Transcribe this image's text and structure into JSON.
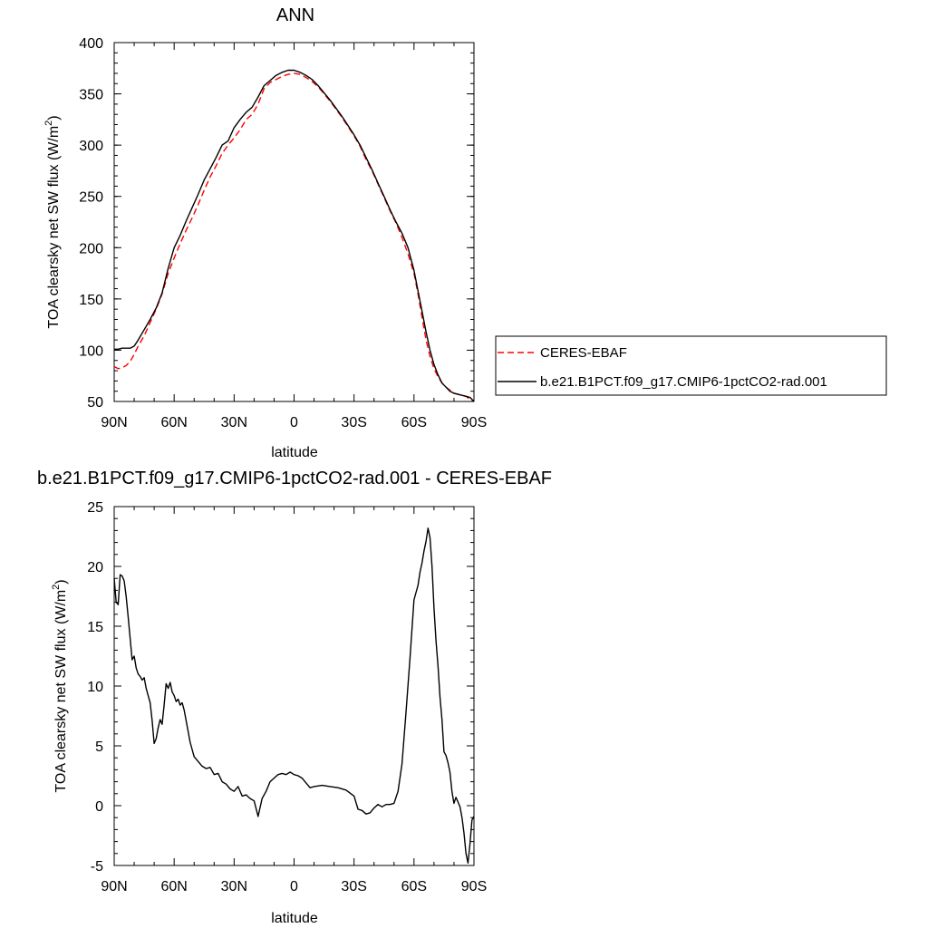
{
  "chart_data": [
    {
      "type": "line",
      "title": "ANN",
      "xlabel": "latitude",
      "ylabel": "TOA clearsky net SW flux (W/m",
      "ylabel_sup": "2",
      "ylabel_close": ")",
      "xlim": [
        90,
        -90
      ],
      "ylim": [
        50,
        400
      ],
      "x_ticks": [
        90,
        60,
        30,
        0,
        -30,
        -60,
        -90
      ],
      "x_tick_labels": [
        "90N",
        "60N",
        "30N",
        "0",
        "30S",
        "60S",
        "90S"
      ],
      "y_ticks": [
        50,
        100,
        150,
        200,
        250,
        300,
        350,
        400
      ],
      "y_tick_labels": [
        "50",
        "100",
        "150",
        "200",
        "250",
        "300",
        "350",
        "400"
      ],
      "legend_position": "right",
      "series": [
        {
          "name": "CERES-EBAF",
          "color": "#ff0000",
          "style": "dashed",
          "x": [
            90,
            88,
            86,
            84,
            82,
            80,
            78,
            75,
            72,
            69,
            66,
            63,
            60,
            57,
            54,
            51,
            48,
            45,
            42,
            39,
            36,
            33,
            30,
            27,
            24,
            21,
            18,
            15,
            12,
            9,
            6,
            3,
            0,
            -3,
            -6,
            -9,
            -12,
            -15,
            -18,
            -21,
            -24,
            -27,
            -30,
            -33,
            -36,
            -39,
            -42,
            -45,
            -48,
            -51,
            -54,
            -57,
            -60,
            -62,
            -64,
            -66,
            -68,
            -70,
            -72,
            -74,
            -76,
            -78,
            -80,
            -82,
            -84,
            -86,
            -88,
            -90
          ],
          "y": [
            84,
            82,
            83,
            85,
            89,
            96,
            104,
            114,
            127,
            140,
            155,
            175,
            190,
            204,
            217,
            229,
            242,
            256,
            269,
            280,
            292,
            300,
            307,
            315,
            325,
            330,
            340,
            355,
            361,
            364,
            367,
            369,
            370,
            369,
            366,
            362,
            357,
            350,
            343,
            335,
            327,
            318,
            309,
            299,
            286,
            275,
            262,
            249,
            236,
            224,
            210,
            194,
            175,
            155,
            132,
            110,
            94,
            82,
            74,
            68,
            64,
            61,
            58,
            57,
            56,
            55,
            52,
            50
          ]
        },
        {
          "name": "b.e21.B1PCT.f09_g17.CMIP6-1pctCO2-rad.001",
          "color": "#000000",
          "style": "solid",
          "x": [
            90,
            88,
            86,
            84,
            82,
            80,
            78,
            75,
            72,
            69,
            66,
            63,
            60,
            57,
            54,
            51,
            48,
            45,
            42,
            39,
            36,
            33,
            30,
            27,
            24,
            21,
            18,
            15,
            12,
            9,
            6,
            3,
            0,
            -3,
            -6,
            -9,
            -12,
            -15,
            -18,
            -21,
            -24,
            -27,
            -30,
            -33,
            -36,
            -39,
            -42,
            -45,
            -48,
            -51,
            -54,
            -57,
            -60,
            -62,
            -64,
            -66,
            -68,
            -70,
            -72,
            -74,
            -76,
            -78,
            -80,
            -82,
            -84,
            -86,
            -88,
            -90
          ],
          "y": [
            101,
            101,
            102,
            102,
            102,
            104,
            110,
            120,
            130,
            141,
            156,
            180,
            200,
            212,
            226,
            239,
            252,
            266,
            277,
            288,
            300,
            304,
            317,
            325,
            332,
            337,
            347,
            358,
            363,
            368,
            371,
            373,
            373,
            371,
            368,
            364,
            358,
            351,
            344,
            336,
            328,
            319,
            310,
            300,
            288,
            276,
            263,
            250,
            237,
            225,
            214,
            200,
            178,
            158,
            138,
            118,
            100,
            86,
            76,
            68,
            64,
            60,
            58,
            57,
            56,
            55,
            54,
            50
          ]
        }
      ]
    },
    {
      "type": "line",
      "title": "b.e21.B1PCT.f09_g17.CMIP6-1pctCO2-rad.001 - CERES-EBAF",
      "xlabel": "latitude",
      "ylabel": "TOA clearsky net SW flux (W/m",
      "ylabel_sup": "2",
      "ylabel_close": ")",
      "xlim": [
        90,
        -90
      ],
      "ylim": [
        -5,
        25
      ],
      "x_ticks": [
        90,
        60,
        30,
        0,
        -30,
        -60,
        -90
      ],
      "x_tick_labels": [
        "90N",
        "60N",
        "30N",
        "0",
        "30S",
        "60S",
        "90S"
      ],
      "y_ticks": [
        -5,
        0,
        5,
        10,
        15,
        20,
        25
      ],
      "y_tick_labels": [
        "-5",
        "0",
        "5",
        "10",
        "15",
        "20",
        "25"
      ],
      "series": [
        {
          "color": "#000000",
          "style": "solid",
          "x": [
            90,
            89,
            88,
            87,
            86,
            85,
            84,
            83,
            82,
            81,
            80,
            79,
            78,
            77,
            76,
            75,
            74,
            73,
            72,
            71,
            70,
            69,
            68,
            67,
            66,
            65,
            64,
            63,
            62,
            61,
            60,
            59,
            58,
            57,
            56,
            55,
            54,
            52,
            50,
            48,
            46,
            44,
            42,
            40,
            38,
            36,
            34,
            32,
            30,
            28,
            26,
            24,
            22,
            20,
            18,
            16,
            14,
            12,
            10,
            8,
            6,
            4,
            2,
            0,
            -2,
            -4,
            -6,
            -8,
            -10,
            -14,
            -18,
            -22,
            -26,
            -30,
            -32,
            -34,
            -36,
            -38,
            -40,
            -42,
            -44,
            -46,
            -48,
            -50,
            -52,
            -54,
            -56,
            -58,
            -60,
            -61,
            -62,
            -63,
            -64,
            -65,
            -66,
            -67,
            -68,
            -69,
            -70,
            -71,
            -72,
            -73,
            -74,
            -75,
            -76,
            -77,
            -78,
            -79,
            -80,
            -81,
            -82,
            -83,
            -84,
            -85,
            -86,
            -87,
            -88,
            -89,
            -90
          ],
          "y": [
            19,
            17,
            16.8,
            19.3,
            19.2,
            18.8,
            17.5,
            15.8,
            14,
            12.2,
            12.5,
            11.5,
            11,
            10.8,
            10.5,
            10.7,
            9.8,
            9.2,
            8.6,
            7.1,
            5.2,
            5.6,
            6.5,
            7.2,
            6.8,
            8.4,
            10.2,
            9.8,
            10.3,
            9.5,
            9.2,
            8.7,
            8.9,
            8.4,
            8.6,
            8,
            7.1,
            5.3,
            4.1,
            3.7,
            3.3,
            3.1,
            3.2,
            2.6,
            2.7,
            2,
            1.8,
            1.4,
            1.2,
            1.6,
            0.8,
            0.9,
            0.6,
            0.4,
            -0.9,
            0.6,
            1.2,
            2,
            2.3,
            2.6,
            2.7,
            2.6,
            2.8,
            2.6,
            2.5,
            2.3,
            1.9,
            1.5,
            1.6,
            1.7,
            1.6,
            1.5,
            1.3,
            0.8,
            -0.3,
            -0.4,
            -0.7,
            -0.6,
            -0.2,
            0.1,
            -0.1,
            0.1,
            0.1,
            0.2,
            1.2,
            3.5,
            7.8,
            12.3,
            17.2,
            17.8,
            18.4,
            19.5,
            20.3,
            21.3,
            22.1,
            23.2,
            22.4,
            20,
            16.5,
            13.8,
            11.7,
            9.1,
            7.2,
            4.5,
            4.2,
            3.6,
            2.8,
            1.2,
            0.2,
            0.7,
            0.3,
            -0.1,
            -1,
            -2.3,
            -4,
            -4.8,
            -3.2,
            -1.2,
            -0.9
          ]
        }
      ]
    }
  ]
}
